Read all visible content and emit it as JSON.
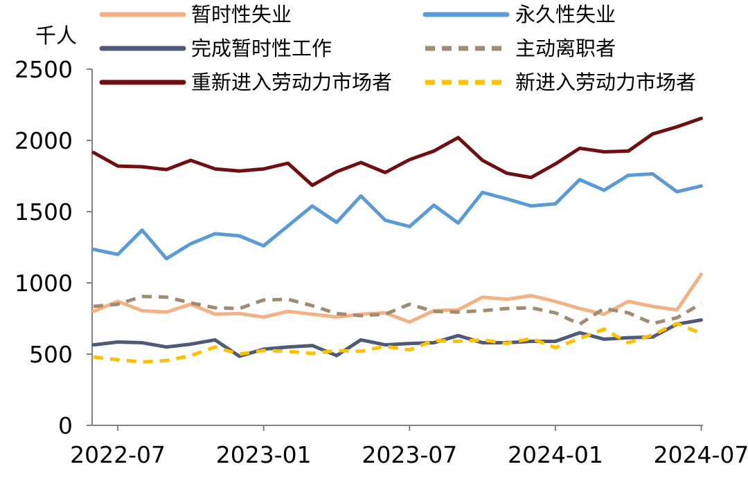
{
  "chart_data": {
    "type": "line",
    "unit_label": "千人",
    "ylim": [
      0,
      2500
    ],
    "yticks": [
      0,
      500,
      1000,
      1500,
      2000,
      2500
    ],
    "xticks": [
      "2022-07",
      "2023-01",
      "2023-07",
      "2024-01",
      "2024-07"
    ],
    "x": [
      "2022-06",
      "2022-07",
      "2022-08",
      "2022-09",
      "2022-10",
      "2022-11",
      "2022-12",
      "2023-01",
      "2023-02",
      "2023-03",
      "2023-04",
      "2023-05",
      "2023-06",
      "2023-07",
      "2023-08",
      "2023-09",
      "2023-10",
      "2023-11",
      "2023-12",
      "2024-01",
      "2024-02",
      "2024-03",
      "2024-04",
      "2024-05",
      "2024-06",
      "2024-07"
    ],
    "grid": false,
    "legend_position": "top",
    "series": [
      {
        "name": "暂时性失业",
        "color": "#F4B183",
        "dash": "solid",
        "values": [
          800,
          870,
          805,
          795,
          850,
          780,
          785,
          760,
          800,
          780,
          760,
          780,
          790,
          725,
          805,
          810,
          900,
          885,
          910,
          870,
          820,
          780,
          870,
          835,
          810,
          1060
        ]
      },
      {
        "name": "永久性失业",
        "color": "#5B9BD5",
        "dash": "solid",
        "values": [
          1235,
          1200,
          1370,
          1170,
          1275,
          1345,
          1330,
          1260,
          1400,
          1540,
          1425,
          1610,
          1440,
          1395,
          1545,
          1420,
          1635,
          1590,
          1540,
          1555,
          1725,
          1650,
          1755,
          1765,
          1640,
          1680
        ]
      },
      {
        "name": "完成暂时性工作",
        "color": "#4F5A78",
        "dash": "solid",
        "values": [
          565,
          585,
          580,
          550,
          570,
          600,
          485,
          535,
          550,
          560,
          490,
          600,
          565,
          575,
          580,
          630,
          580,
          580,
          590,
          590,
          650,
          605,
          615,
          620,
          710,
          740
        ]
      },
      {
        "name": "主动离职者",
        "color": "#A08C73",
        "dash": "dash",
        "values": [
          835,
          850,
          905,
          900,
          860,
          825,
          820,
          880,
          885,
          840,
          785,
          770,
          780,
          850,
          800,
          795,
          805,
          820,
          825,
          790,
          710,
          820,
          790,
          715,
          755,
          855
        ]
      },
      {
        "name": "重新进入劳动力市场者",
        "color": "#6E0F12",
        "dash": "solid",
        "values": [
          1915,
          1820,
          1815,
          1795,
          1860,
          1800,
          1785,
          1800,
          1840,
          1685,
          1780,
          1845,
          1775,
          1865,
          1925,
          2020,
          1860,
          1770,
          1740,
          1835,
          1945,
          1920,
          1925,
          2045,
          2095,
          2155
        ]
      },
      {
        "name": "新进入劳动力市场者",
        "color": "#FFC000",
        "dash": "dash",
        "values": [
          480,
          460,
          445,
          455,
          490,
          550,
          500,
          525,
          520,
          505,
          525,
          520,
          555,
          530,
          595,
          590,
          600,
          575,
          610,
          545,
          610,
          675,
          580,
          635,
          715,
          645
        ]
      }
    ]
  }
}
